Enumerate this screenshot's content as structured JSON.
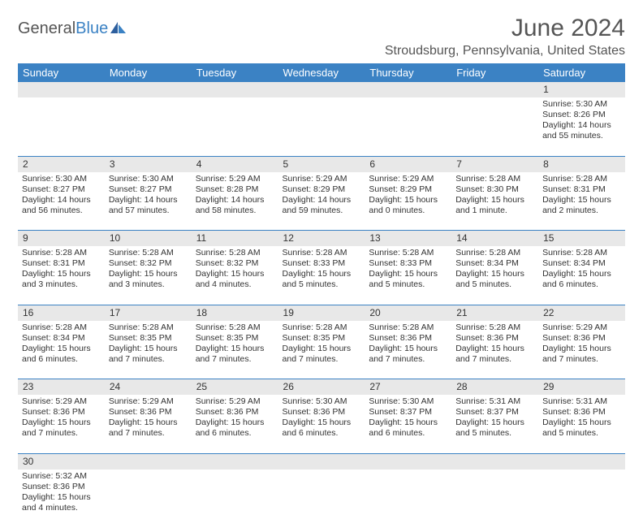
{
  "logo": {
    "text1": "General",
    "text2": "Blue"
  },
  "title": "June 2024",
  "location": "Stroudsburg, Pennsylvania, United States",
  "colors": {
    "header_bg": "#3b82c4",
    "header_text": "#ffffff",
    "daynum_bg": "#e8e8e8",
    "border": "#3b82c4",
    "text": "#333333",
    "page_bg": "#ffffff"
  },
  "typography": {
    "title_fontsize": 30,
    "location_fontsize": 16,
    "header_fontsize": 13,
    "cell_fontsize": 10.5
  },
  "weekdays": [
    "Sunday",
    "Monday",
    "Tuesday",
    "Wednesday",
    "Thursday",
    "Friday",
    "Saturday"
  ],
  "weeks": [
    [
      null,
      null,
      null,
      null,
      null,
      null,
      {
        "n": "1",
        "sr": "Sunrise: 5:30 AM",
        "ss": "Sunset: 8:26 PM",
        "d1": "Daylight: 14 hours",
        "d2": "and 55 minutes."
      }
    ],
    [
      {
        "n": "2",
        "sr": "Sunrise: 5:30 AM",
        "ss": "Sunset: 8:27 PM",
        "d1": "Daylight: 14 hours",
        "d2": "and 56 minutes."
      },
      {
        "n": "3",
        "sr": "Sunrise: 5:30 AM",
        "ss": "Sunset: 8:27 PM",
        "d1": "Daylight: 14 hours",
        "d2": "and 57 minutes."
      },
      {
        "n": "4",
        "sr": "Sunrise: 5:29 AM",
        "ss": "Sunset: 8:28 PM",
        "d1": "Daylight: 14 hours",
        "d2": "and 58 minutes."
      },
      {
        "n": "5",
        "sr": "Sunrise: 5:29 AM",
        "ss": "Sunset: 8:29 PM",
        "d1": "Daylight: 14 hours",
        "d2": "and 59 minutes."
      },
      {
        "n": "6",
        "sr": "Sunrise: 5:29 AM",
        "ss": "Sunset: 8:29 PM",
        "d1": "Daylight: 15 hours",
        "d2": "and 0 minutes."
      },
      {
        "n": "7",
        "sr": "Sunrise: 5:28 AM",
        "ss": "Sunset: 8:30 PM",
        "d1": "Daylight: 15 hours",
        "d2": "and 1 minute."
      },
      {
        "n": "8",
        "sr": "Sunrise: 5:28 AM",
        "ss": "Sunset: 8:31 PM",
        "d1": "Daylight: 15 hours",
        "d2": "and 2 minutes."
      }
    ],
    [
      {
        "n": "9",
        "sr": "Sunrise: 5:28 AM",
        "ss": "Sunset: 8:31 PM",
        "d1": "Daylight: 15 hours",
        "d2": "and 3 minutes."
      },
      {
        "n": "10",
        "sr": "Sunrise: 5:28 AM",
        "ss": "Sunset: 8:32 PM",
        "d1": "Daylight: 15 hours",
        "d2": "and 3 minutes."
      },
      {
        "n": "11",
        "sr": "Sunrise: 5:28 AM",
        "ss": "Sunset: 8:32 PM",
        "d1": "Daylight: 15 hours",
        "d2": "and 4 minutes."
      },
      {
        "n": "12",
        "sr": "Sunrise: 5:28 AM",
        "ss": "Sunset: 8:33 PM",
        "d1": "Daylight: 15 hours",
        "d2": "and 5 minutes."
      },
      {
        "n": "13",
        "sr": "Sunrise: 5:28 AM",
        "ss": "Sunset: 8:33 PM",
        "d1": "Daylight: 15 hours",
        "d2": "and 5 minutes."
      },
      {
        "n": "14",
        "sr": "Sunrise: 5:28 AM",
        "ss": "Sunset: 8:34 PM",
        "d1": "Daylight: 15 hours",
        "d2": "and 5 minutes."
      },
      {
        "n": "15",
        "sr": "Sunrise: 5:28 AM",
        "ss": "Sunset: 8:34 PM",
        "d1": "Daylight: 15 hours",
        "d2": "and 6 minutes."
      }
    ],
    [
      {
        "n": "16",
        "sr": "Sunrise: 5:28 AM",
        "ss": "Sunset: 8:34 PM",
        "d1": "Daylight: 15 hours",
        "d2": "and 6 minutes."
      },
      {
        "n": "17",
        "sr": "Sunrise: 5:28 AM",
        "ss": "Sunset: 8:35 PM",
        "d1": "Daylight: 15 hours",
        "d2": "and 7 minutes."
      },
      {
        "n": "18",
        "sr": "Sunrise: 5:28 AM",
        "ss": "Sunset: 8:35 PM",
        "d1": "Daylight: 15 hours",
        "d2": "and 7 minutes."
      },
      {
        "n": "19",
        "sr": "Sunrise: 5:28 AM",
        "ss": "Sunset: 8:35 PM",
        "d1": "Daylight: 15 hours",
        "d2": "and 7 minutes."
      },
      {
        "n": "20",
        "sr": "Sunrise: 5:28 AM",
        "ss": "Sunset: 8:36 PM",
        "d1": "Daylight: 15 hours",
        "d2": "and 7 minutes."
      },
      {
        "n": "21",
        "sr": "Sunrise: 5:28 AM",
        "ss": "Sunset: 8:36 PM",
        "d1": "Daylight: 15 hours",
        "d2": "and 7 minutes."
      },
      {
        "n": "22",
        "sr": "Sunrise: 5:29 AM",
        "ss": "Sunset: 8:36 PM",
        "d1": "Daylight: 15 hours",
        "d2": "and 7 minutes."
      }
    ],
    [
      {
        "n": "23",
        "sr": "Sunrise: 5:29 AM",
        "ss": "Sunset: 8:36 PM",
        "d1": "Daylight: 15 hours",
        "d2": "and 7 minutes."
      },
      {
        "n": "24",
        "sr": "Sunrise: 5:29 AM",
        "ss": "Sunset: 8:36 PM",
        "d1": "Daylight: 15 hours",
        "d2": "and 7 minutes."
      },
      {
        "n": "25",
        "sr": "Sunrise: 5:29 AM",
        "ss": "Sunset: 8:36 PM",
        "d1": "Daylight: 15 hours",
        "d2": "and 6 minutes."
      },
      {
        "n": "26",
        "sr": "Sunrise: 5:30 AM",
        "ss": "Sunset: 8:36 PM",
        "d1": "Daylight: 15 hours",
        "d2": "and 6 minutes."
      },
      {
        "n": "27",
        "sr": "Sunrise: 5:30 AM",
        "ss": "Sunset: 8:37 PM",
        "d1": "Daylight: 15 hours",
        "d2": "and 6 minutes."
      },
      {
        "n": "28",
        "sr": "Sunrise: 5:31 AM",
        "ss": "Sunset: 8:37 PM",
        "d1": "Daylight: 15 hours",
        "d2": "and 5 minutes."
      },
      {
        "n": "29",
        "sr": "Sunrise: 5:31 AM",
        "ss": "Sunset: 8:36 PM",
        "d1": "Daylight: 15 hours",
        "d2": "and 5 minutes."
      }
    ],
    [
      {
        "n": "30",
        "sr": "Sunrise: 5:32 AM",
        "ss": "Sunset: 8:36 PM",
        "d1": "Daylight: 15 hours",
        "d2": "and 4 minutes."
      },
      null,
      null,
      null,
      null,
      null,
      null
    ]
  ]
}
